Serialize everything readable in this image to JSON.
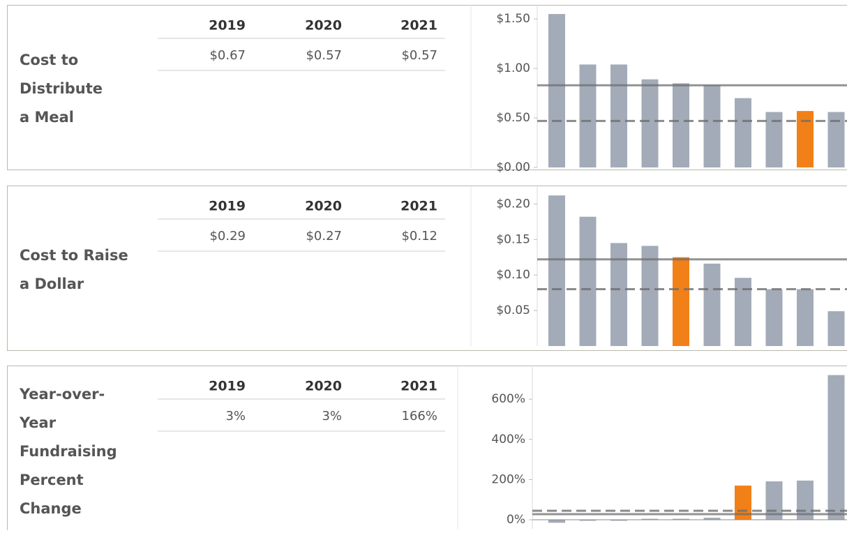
{
  "chart_data": [
    {
      "type": "bar",
      "row_label": [
        "Cost to",
        "Distribute",
        "a Meal"
      ],
      "table_columns": [
        "2019",
        "2020",
        "2021"
      ],
      "table_values": [
        "$0.67",
        "$0.57",
        "$0.57"
      ],
      "categories": [
        null,
        null,
        null,
        null,
        null,
        null,
        null,
        null,
        null,
        null
      ],
      "values": [
        1.55,
        1.04,
        1.04,
        0.89,
        0.85,
        0.83,
        0.7,
        0.56,
        0.57,
        0.56
      ],
      "colors": [
        "#a3abb8",
        "#a3abb8",
        "#a3abb8",
        "#a3abb8",
        "#a3abb8",
        "#a3abb8",
        "#a3abb8",
        "#a3abb8",
        "#f28018",
        "#a3abb8"
      ],
      "ylim": [
        0,
        1.6
      ],
      "yticks": [
        {
          "value": 0,
          "label": "$0.00"
        },
        {
          "value": 0.5,
          "label": "$0.50"
        },
        {
          "value": 1,
          "label": "$1.00"
        },
        {
          "value": 1.5,
          "label": "$1.50"
        }
      ],
      "reference_lines": [
        {
          "value": 0.83,
          "style": "solid"
        },
        {
          "value": 0.47,
          "style": "dashed"
        }
      ]
    },
    {
      "type": "bar",
      "row_label": [
        "Cost to Raise",
        "a Dollar"
      ],
      "table_columns": [
        "2019",
        "2020",
        "2021"
      ],
      "table_values": [
        "$0.29",
        "$0.27",
        "$0.12"
      ],
      "categories": [
        null,
        null,
        null,
        null,
        null,
        null,
        null,
        null,
        null,
        null
      ],
      "values": [
        0.212,
        0.182,
        0.145,
        0.141,
        0.125,
        0.116,
        0.096,
        0.08,
        0.08,
        0.049
      ],
      "colors": [
        "#a3abb8",
        "#a3abb8",
        "#a3abb8",
        "#a3abb8",
        "#f28018",
        "#a3abb8",
        "#a3abb8",
        "#a3abb8",
        "#a3abb8",
        "#a3abb8"
      ],
      "ylim": [
        0,
        0.22
      ],
      "yticks": [
        {
          "value": 0.05,
          "label": "$0.05"
        },
        {
          "value": 0.1,
          "label": "$0.10"
        },
        {
          "value": 0.15,
          "label": "$0.15"
        },
        {
          "value": 0.2,
          "label": "$0.20"
        }
      ],
      "reference_lines": [
        {
          "value": 0.122,
          "style": "solid"
        },
        {
          "value": 0.08,
          "style": "dashed"
        }
      ]
    },
    {
      "type": "bar",
      "row_label": [
        "Year-over-",
        "Year",
        "Fundraising",
        "Percent",
        "Change"
      ],
      "table_columns": [
        "2019",
        "2020",
        "2021"
      ],
      "table_values": [
        "3%",
        "3%",
        "166%"
      ],
      "categories": [
        null,
        null,
        null,
        null,
        null,
        null,
        null,
        null,
        null,
        null
      ],
      "values": [
        -15,
        -5,
        -5,
        5,
        5,
        10,
        170,
        191,
        195,
        720
      ],
      "colors": [
        "#a3abb8",
        "#a3abb8",
        "#a3abb8",
        "#a3abb8",
        "#a3abb8",
        "#a3abb8",
        "#f28018",
        "#a3abb8",
        "#a3abb8",
        "#a3abb8"
      ],
      "ylim": [
        -45,
        750
      ],
      "yticks": [
        {
          "value": 0,
          "label": "0%"
        },
        {
          "value": 200,
          "label": "200%"
        },
        {
          "value": 400,
          "label": "400%"
        },
        {
          "value": 600,
          "label": "600%"
        }
      ],
      "reference_lines": [
        {
          "value": 28,
          "style": "solid"
        },
        {
          "value": 45,
          "style": "dashed"
        }
      ]
    }
  ]
}
